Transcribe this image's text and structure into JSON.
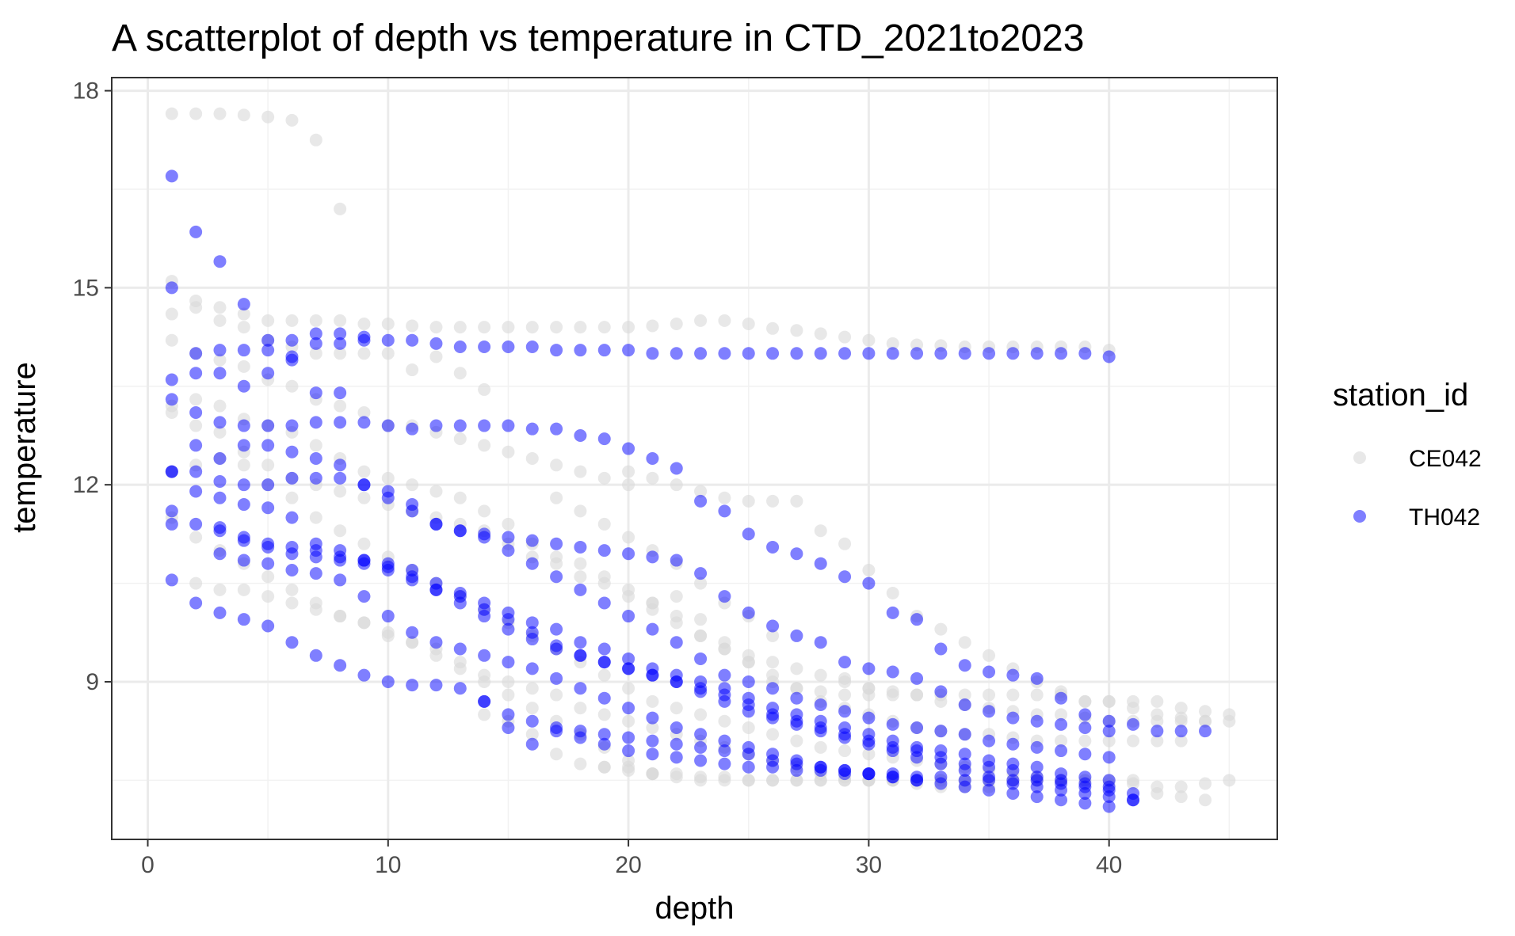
{
  "chart_data": {
    "type": "scatter",
    "title": "A scatterplot of depth vs temperature in CTD_2021to2023",
    "xlabel": "depth",
    "ylabel": "temperature",
    "xlim": [
      -1.5,
      47
    ],
    "ylim": [
      6.6,
      18.2
    ],
    "xticks": [
      0,
      10,
      20,
      30,
      40
    ],
    "yticks": [
      9,
      12,
      15,
      18
    ],
    "xminor": [
      5,
      15,
      25,
      35,
      45
    ],
    "yminor": [
      7.5,
      10.5,
      13.5,
      16.5
    ],
    "grid": true,
    "legend": {
      "title": "station_id",
      "position": "right"
    },
    "series": [
      {
        "name": "CE042",
        "color": "#d9d9d9",
        "opacity": 0.6,
        "profiles": [
          {
            "start": 1,
            "values": [
              17.65,
              17.65,
              17.65,
              17.63,
              17.6,
              17.55,
              17.25,
              16.2
            ]
          },
          {
            "start": 1,
            "values": [
              15.1,
              14.8,
              14.7,
              14.6,
              14.5,
              14.5,
              14.5,
              14.5,
              14.45,
              14.45,
              14.42,
              14.4,
              14.4,
              14.4,
              14.4,
              14.4,
              14.4,
              14.4,
              14.4,
              14.4,
              14.42,
              14.45,
              14.5,
              14.5,
              14.45,
              14.38,
              14.35,
              14.3,
              14.25,
              14.2,
              14.15,
              14.13,
              14.12,
              14.1,
              14.1,
              14.1,
              14.1,
              14.1,
              14.1,
              14.05
            ]
          },
          {
            "start": 1,
            "values": [
              14.6,
              14.7,
              14.5,
              14.4,
              14.2,
              14.1,
              14.0,
              14.0,
              14.0,
              14.0,
              13.75,
              13.95,
              13.7,
              13.45
            ]
          },
          {
            "start": 1,
            "values": [
              14.2,
              14.0,
              13.9,
              13.8,
              13.6,
              13.5,
              13.3,
              13.2,
              13.1,
              12.9,
              12.9,
              12.8,
              12.7,
              12.6,
              12.5,
              12.4,
              12.3,
              12.2,
              12.1,
              12.0
            ]
          },
          {
            "start": 1,
            "values": [
              13.2,
              13.3,
              13.2,
              13.0,
              12.9,
              12.8,
              12.6,
              12.4,
              12.2,
              12.1,
              12.0,
              11.9,
              11.8,
              11.6,
              11.4,
              11.1,
              10.9,
              10.8,
              10.6,
              10.4,
              10.2,
              10.0,
              9.7,
              9.5,
              9.4,
              9.3,
              9.2,
              9.1,
              9.0,
              8.9
            ]
          },
          {
            "start": 1,
            "values": [
              13.1,
              12.9,
              12.8,
              12.5,
              12.3,
              12.1,
              12.0,
              11.9,
              11.8,
              11.7,
              11.6,
              11.5,
              11.4,
              11.3,
              11.1,
              10.9,
              10.8,
              10.6,
              10.5,
              10.3,
              10.1,
              9.9,
              9.7,
              9.5,
              9.3,
              9.1,
              8.9,
              8.7,
              8.6,
              8.5,
              8.4,
              8.3,
              8.25,
              8.2,
              8.2,
              8.15,
              8.1,
              8.1,
              8.1,
              8.1,
              8.1,
              8.1,
              8.1
            ]
          },
          {
            "start": 1,
            "values": [
              12.2,
              12.3,
              12.4,
              12.3,
              12.0,
              11.8,
              11.5,
              11.3,
              11.1,
              10.9,
              10.7,
              10.5,
              10.3,
              10.1,
              9.9,
              9.7,
              9.5,
              9.3,
              9.1,
              8.9,
              8.7,
              8.6,
              8.5,
              8.4,
              8.3,
              8.2,
              8.1,
              8.0,
              7.95,
              7.9,
              7.85,
              7.8,
              7.75,
              7.7,
              7.65,
              7.6,
              7.55,
              7.5,
              7.5,
              7.45,
              7.45,
              7.4,
              7.4,
              7.45,
              7.5
            ]
          },
          {
            "start": 1,
            "values": [
              11.5,
              11.2,
              11.0,
              10.8,
              10.6,
              10.4,
              10.2,
              10.0,
              9.9,
              9.7,
              9.6,
              9.5,
              9.3,
              9.1,
              9.0,
              8.9,
              8.8,
              8.6,
              8.5,
              8.4,
              8.3,
              8.2,
              8.1,
              8.0,
              7.9,
              7.8,
              7.7,
              7.6,
              7.55,
              7.5,
              7.5,
              7.45,
              7.4,
              7.4,
              7.4
            ]
          },
          {
            "start": 2,
            "values": [
              10.5,
              10.4,
              10.4,
              10.3,
              10.2,
              10.1,
              10.0,
              9.9,
              9.75,
              9.6,
              9.4,
              9.2,
              9.0,
              8.8,
              8.6,
              8.4,
              8.2,
              8.0,
              7.8,
              7.6
            ]
          },
          {
            "start": 17,
            "values": [
              11.8,
              11.6,
              11.4,
              11.2,
              11.0,
              10.8,
              10.5,
              10.2,
              10.0,
              9.7
            ]
          },
          {
            "start": 20,
            "values": [
              12.2,
              12.1,
              12.0,
              11.9,
              11.8,
              11.75,
              11.75,
              11.75,
              11.3,
              11.1,
              10.7,
              10.35,
              10.0,
              9.8,
              9.6,
              9.4,
              9.2,
              9.0,
              8.85,
              8.7,
              8.7,
              8.7,
              8.7,
              8.6,
              8.55,
              8.5
            ]
          },
          {
            "start": 14,
            "values": [
              8.5,
              8.4,
              8.2,
              7.9,
              7.75,
              7.7,
              7.7,
              7.6,
              7.55,
              7.5,
              7.5,
              7.5,
              7.5,
              7.5,
              7.5,
              7.5,
              7.5,
              7.5,
              7.5,
              7.5,
              7.5,
              7.5,
              7.5,
              7.5,
              7.5
            ]
          },
          {
            "start": 19,
            "values": [
              7.7,
              7.65,
              7.6,
              7.6,
              7.55,
              7.55,
              7.5,
              7.5,
              7.5,
              7.5,
              7.5,
              7.5,
              7.5,
              7.5,
              7.5,
              7.5,
              7.5,
              7.5,
              7.5,
              7.5,
              7.5,
              7.5,
              7.5,
              7.3,
              7.25,
              7.2
            ]
          },
          {
            "start": 21,
            "values": [
              10.2,
              10.3,
              9.95,
              9.6,
              9.3,
              9.0,
              8.9,
              8.85,
              8.8,
              8.8,
              8.8,
              8.8,
              8.8,
              8.8,
              8.8,
              8.8,
              8.8,
              8.8,
              8.7,
              8.7,
              8.6,
              8.5,
              8.45,
              8.4
            ]
          },
          {
            "start": 29,
            "values": [
              9.05,
              8.9,
              8.85,
              8.8,
              8.7,
              8.65,
              8.6,
              8.55,
              8.5,
              8.5,
              8.45,
              8.4,
              8.4,
              8.4,
              8.4,
              8.4,
              8.4
            ]
          }
        ]
      },
      {
        "name": "TH042",
        "color": "#0000ff",
        "opacity": 0.5,
        "profiles": [
          {
            "start": 1,
            "values": [
              16.7,
              15.85,
              15.4,
              14.75,
              14.2,
              14.2,
              14.15,
              14.15,
              14.2,
              14.2,
              14.2,
              14.15,
              14.1,
              14.1,
              14.1,
              14.1,
              14.05,
              14.05,
              14.05,
              14.05,
              14.0,
              14.0,
              14.0,
              14.0,
              14.0,
              14.0,
              14.0,
              14.0,
              14.0,
              14.0,
              14.0,
              14.0,
              14.0,
              14.0,
              14.0,
              14.0,
              14.0,
              14.0,
              14.0,
              13.95
            ]
          },
          {
            "start": 1,
            "values": [
              15.0,
              14.0,
              14.05,
              14.05,
              14.05,
              13.9,
              13.4,
              13.4
            ]
          },
          {
            "start": 1,
            "values": [
              13.6,
              13.7,
              13.7,
              13.5,
              13.7,
              13.95,
              14.3,
              14.3,
              14.25
            ]
          },
          {
            "start": 1,
            "values": [
              13.3,
              13.1,
              12.95,
              12.9,
              12.9,
              12.9,
              12.95,
              12.95,
              12.95,
              12.9,
              12.85,
              12.9,
              12.9,
              12.9,
              12.9,
              12.85,
              12.85,
              12.75,
              12.7,
              12.55,
              12.4,
              12.25,
              11.75,
              11.6,
              11.25,
              11.05,
              10.95,
              10.8,
              10.6,
              10.5,
              10.05,
              9.95,
              9.5,
              9.25,
              9.15,
              9.1,
              9.05,
              8.75,
              8.5,
              8.4,
              8.35,
              8.25,
              8.25,
              8.25
            ]
          },
          {
            "start": 1,
            "values": [
              12.2,
              12.6,
              12.4,
              12.6,
              12.6,
              12.5,
              12.4,
              12.3,
              12.0,
              11.8,
              11.6,
              11.4,
              11.3,
              11.25,
              11.2,
              11.15,
              11.1,
              11.05,
              11.0,
              10.95,
              10.9,
              10.85,
              10.65,
              10.3,
              10.05,
              9.85,
              9.7,
              9.6,
              9.3,
              9.2,
              9.15,
              9.05,
              8.85,
              8.65,
              8.55,
              8.45,
              8.4,
              8.35,
              8.3,
              8.25
            ]
          },
          {
            "start": 1,
            "values": [
              12.2,
              12.2,
              12.05,
              12.0,
              12.0,
              12.1,
              12.1,
              12.1,
              12.0,
              11.9,
              11.7,
              11.4,
              11.3,
              11.2,
              11.0,
              10.8,
              10.6,
              10.4,
              10.2,
              10.0,
              9.8,
              9.6,
              9.35,
              9.1,
              9.0,
              8.9,
              8.75,
              8.65,
              8.55,
              8.45,
              8.35,
              8.3,
              8.25,
              8.2,
              8.1,
              8.05,
              8.0,
              7.95,
              7.9,
              7.85
            ]
          },
          {
            "start": 1,
            "values": [
              11.6,
              11.9,
              11.8,
              11.7,
              11.65,
              11.5,
              11.1,
              11.0,
              10.85,
              10.8,
              10.7,
              10.5,
              10.35,
              10.2,
              10.05,
              9.9,
              9.8,
              9.6,
              9.5,
              9.35,
              9.2,
              9.1,
              9.0,
              8.9,
              8.75,
              8.6,
              8.5,
              8.4,
              8.3,
              8.2,
              8.1,
              8.0,
              7.95,
              7.9,
              7.8,
              7.75,
              7.7,
              7.6,
              7.55,
              7.5
            ]
          },
          {
            "start": 1,
            "values": [
              11.4,
              11.4,
              11.3,
              11.15,
              11.1,
              11.05,
              11.0,
              10.9,
              10.85,
              10.75,
              10.6,
              10.4,
              10.3,
              10.1,
              9.95,
              9.75,
              9.55,
              9.4,
              9.3,
              9.2,
              9.1,
              9.0,
              8.9,
              8.8,
              8.65,
              8.5,
              8.4,
              8.3,
              8.2,
              8.1,
              8.0,
              7.95,
              7.85,
              7.75,
              7.7,
              7.65,
              7.55,
              7.5,
              7.45,
              7.4
            ]
          },
          {
            "start": 3,
            "values": [
              11.35,
              11.2,
              11.05,
              10.95,
              10.9,
              10.85,
              10.8,
              10.7,
              10.55,
              10.4,
              10.2,
              10.0,
              9.8,
              9.65,
              9.5,
              9.4,
              9.3,
              9.2,
              9.1,
              9.0,
              8.85,
              8.7,
              8.55,
              8.45,
              8.35,
              8.25,
              8.15,
              8.05,
              7.95,
              7.85,
              7.75,
              7.65,
              7.55,
              7.45,
              7.4,
              7.35,
              7.3,
              7.25,
              7.2
            ]
          },
          {
            "start": 3,
            "values": [
              10.95,
              10.85,
              10.8,
              10.7,
              10.65,
              10.55,
              10.3,
              10.0,
              9.75,
              9.6,
              9.5,
              9.4,
              9.3,
              9.2,
              9.05,
              8.9,
              8.75,
              8.6,
              8.45,
              8.3,
              8.2,
              8.1,
              8.0,
              7.9,
              7.8,
              7.7,
              7.65,
              7.6,
              7.55,
              7.5
            ]
          },
          {
            "start": 1,
            "values": [
              10.55,
              10.2,
              10.05,
              9.95,
              9.85,
              9.6,
              9.4,
              9.25,
              9.1,
              9.0,
              8.95,
              8.95,
              8.9,
              8.7,
              8.5,
              8.4,
              8.3,
              8.25,
              8.2,
              8.15,
              8.1,
              8.05,
              8.0,
              7.95,
              7.9,
              7.8,
              7.75,
              7.7,
              7.65,
              7.6,
              7.55,
              7.5,
              7.45,
              7.4,
              7.35,
              7.3,
              7.25,
              7.2,
              7.15,
              7.1,
              7.2
            ]
          },
          {
            "start": 14,
            "values": [
              8.7,
              8.3,
              8.05,
              8.25,
              8.15,
              8.05,
              7.95,
              7.9,
              7.85,
              7.8,
              7.75,
              7.7,
              7.7,
              7.65,
              7.65,
              7.6,
              7.6,
              7.6,
              7.55,
              7.55,
              7.5,
              7.5,
              7.5,
              7.5,
              7.45,
              7.4,
              7.35,
              7.3
            ]
          }
        ]
      }
    ]
  }
}
